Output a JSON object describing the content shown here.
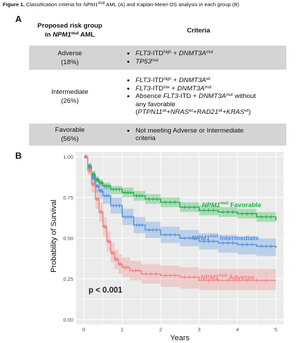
{
  "caption": {
    "label": "Figure 1.",
    "text_a": " Classification criteria for ",
    "gene": "NPM1",
    "gene_sup": "mut",
    "text_b": " AML (A) and Kaplan-Meier OS analysis in each group (B)"
  },
  "panel_a": {
    "letter": "A",
    "header": {
      "group_line1": "Proposed risk group",
      "group_in": "in ",
      "group_gene": "NPM1",
      "group_sup": "mut",
      "group_tail": " AML",
      "criteria": "Criteria"
    },
    "rows": [
      {
        "name": "Adverse",
        "pct": "(18%)"
      },
      {
        "name": "Intermediate",
        "pct": "(26%)"
      },
      {
        "name": "Favorable",
        "pct": "(56%)"
      }
    ],
    "criteria": {
      "adverse_1": {
        "g1": "FLT3",
        "t1": "-ITD",
        "s1": "high",
        "t2": " + ",
        "g2": "DNMT3A",
        "s2": "mut"
      },
      "adverse_2": {
        "g1": "TP53",
        "s1": "mut"
      },
      "intermediate_1": {
        "g1": "FLT3",
        "t1": "-ITD",
        "s1": "high",
        "t2": " + ",
        "g2": "DNMT3A",
        "s2": "wt"
      },
      "intermediate_2": {
        "g1": "FLT3",
        "t1": "-ITD",
        "s1": "low",
        "t2": " + ",
        "g2": "DNMT3A",
        "s2": "mut"
      },
      "intermediate_3": {
        "t1": "Absence ",
        "g1": "FLT3",
        "t2": "-ITD + ",
        "g2": "DNMT3A",
        "s2": "mut",
        "t3": " without",
        "line2": "any favorable",
        "open": "(",
        "p1": "PTPN11",
        "ps1": "wt",
        "plus1": "+",
        "p2": "NRAS",
        "ps2": "wt",
        "plus2": "+",
        "p3": "RAD21",
        "ps3": "wt",
        "plus3": "+",
        "p4": "KRAS",
        "ps4": "wt",
        "close": ")"
      },
      "favorable_1": {
        "line1": "Not meeting Adverse or Intermediate",
        "line2": "criteria"
      }
    }
  },
  "panel_b": {
    "letter": "B",
    "p_value": "p < 0.001",
    "labels": {
      "gene": "NPM1",
      "sup": "mut",
      "favorable": "Favorable",
      "intermediate": "Intermediate",
      "adverse": "Adverse"
    }
  },
  "chart_data": {
    "type": "line",
    "title": "",
    "xlabel": "Years",
    "ylabel": "Probability of Survival",
    "xlim": [
      0,
      5
    ],
    "ylim": [
      0,
      1
    ],
    "xticks": [
      "0",
      "1",
      "2",
      "3",
      "4",
      "5"
    ],
    "yticks": [
      "0.00",
      "0.25",
      "0.50",
      "0.75",
      "1.00"
    ],
    "grid": true,
    "background": "#ebebeb",
    "series": [
      {
        "name": "Favorable",
        "color": "#1fb141",
        "x": [
          0,
          0.1,
          0.2,
          0.3,
          0.4,
          0.5,
          0.7,
          1.0,
          1.3,
          1.6,
          2.0,
          2.5,
          3.0,
          3.5,
          4.0,
          4.5,
          5.0
        ],
        "y": [
          1.0,
          0.94,
          0.89,
          0.86,
          0.84,
          0.82,
          0.8,
          0.78,
          0.76,
          0.74,
          0.72,
          0.69,
          0.67,
          0.66,
          0.65,
          0.63,
          0.61
        ],
        "lower": [
          1.0,
          0.92,
          0.87,
          0.84,
          0.82,
          0.8,
          0.77,
          0.75,
          0.73,
          0.71,
          0.69,
          0.66,
          0.64,
          0.63,
          0.62,
          0.6,
          0.58
        ],
        "upper": [
          1.0,
          0.96,
          0.91,
          0.88,
          0.86,
          0.84,
          0.82,
          0.81,
          0.79,
          0.77,
          0.75,
          0.72,
          0.7,
          0.69,
          0.68,
          0.66,
          0.64
        ]
      },
      {
        "name": "Intermediate",
        "color": "#4f8fdd",
        "x": [
          0,
          0.1,
          0.2,
          0.3,
          0.4,
          0.5,
          0.7,
          1.0,
          1.3,
          1.6,
          2.0,
          2.5,
          3.0,
          3.5,
          4.0,
          4.5,
          5.0
        ],
        "y": [
          1.0,
          0.93,
          0.87,
          0.82,
          0.79,
          0.76,
          0.7,
          0.63,
          0.58,
          0.55,
          0.52,
          0.5,
          0.48,
          0.47,
          0.46,
          0.45,
          0.44
        ],
        "lower": [
          1.0,
          0.9,
          0.83,
          0.78,
          0.74,
          0.71,
          0.65,
          0.58,
          0.53,
          0.5,
          0.47,
          0.45,
          0.43,
          0.41,
          0.4,
          0.39,
          0.38
        ],
        "upper": [
          1.0,
          0.96,
          0.91,
          0.86,
          0.83,
          0.81,
          0.75,
          0.68,
          0.63,
          0.6,
          0.57,
          0.55,
          0.53,
          0.52,
          0.51,
          0.5,
          0.49
        ]
      },
      {
        "name": "Adverse",
        "color": "#f08080",
        "x": [
          0,
          0.1,
          0.2,
          0.3,
          0.4,
          0.5,
          0.6,
          0.7,
          0.8,
          0.9,
          1.0,
          1.2,
          1.5,
          2.0,
          2.5,
          3.0,
          4.0,
          5.0
        ],
        "y": [
          1.0,
          0.92,
          0.83,
          0.74,
          0.66,
          0.57,
          0.48,
          0.41,
          0.37,
          0.34,
          0.32,
          0.3,
          0.28,
          0.27,
          0.26,
          0.24,
          0.24,
          0.24
        ],
        "lower": [
          1.0,
          0.89,
          0.78,
          0.68,
          0.6,
          0.51,
          0.42,
          0.35,
          0.31,
          0.28,
          0.26,
          0.24,
          0.22,
          0.2,
          0.19,
          0.18,
          0.18,
          0.18
        ],
        "upper": [
          1.0,
          0.95,
          0.88,
          0.8,
          0.72,
          0.63,
          0.54,
          0.47,
          0.43,
          0.4,
          0.38,
          0.36,
          0.34,
          0.33,
          0.32,
          0.31,
          0.31,
          0.31
        ]
      }
    ]
  }
}
